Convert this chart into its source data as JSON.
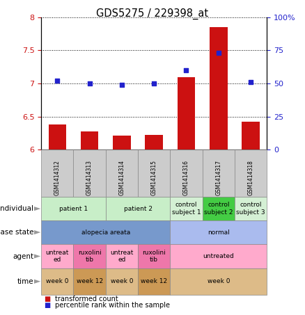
{
  "title": "GDS5275 / 229398_at",
  "samples": [
    "GSM1414312",
    "GSM1414313",
    "GSM1414314",
    "GSM1414315",
    "GSM1414316",
    "GSM1414317",
    "GSM1414318"
  ],
  "transformed_count": [
    6.38,
    6.27,
    6.21,
    6.22,
    7.1,
    7.85,
    6.42
  ],
  "percentile_rank": [
    52,
    50,
    49,
    50,
    60,
    73,
    51
  ],
  "ylim_left": [
    6.0,
    8.0
  ],
  "ylim_right": [
    0,
    100
  ],
  "yticks_left": [
    6.0,
    6.5,
    7.0,
    7.5,
    8.0
  ],
  "ytick_labels_left": [
    "6",
    "6.5",
    "7",
    "7.5",
    "8"
  ],
  "yticks_right": [
    0,
    25,
    50,
    75,
    100
  ],
  "ytick_labels_right": [
    "0",
    "25",
    "50",
    "75",
    "100%"
  ],
  "bar_color": "#cc1111",
  "dot_color": "#2222cc",
  "plot_bg_color": "#ffffff",
  "individual_spans": [
    [
      0,
      2,
      "patient 1",
      "#c8eec8"
    ],
    [
      2,
      4,
      "patient 2",
      "#c8eec8"
    ],
    [
      4,
      5,
      "control\nsubject 1",
      "#d4f0d4"
    ],
    [
      5,
      6,
      "control\nsubject 2",
      "#44cc44"
    ],
    [
      6,
      7,
      "control\nsubject 3",
      "#d4f0d4"
    ]
  ],
  "disease_state_spans": [
    [
      0,
      4,
      "alopecia areata",
      "#7799cc"
    ],
    [
      4,
      7,
      "normal",
      "#aabbee"
    ]
  ],
  "agent_spans": [
    [
      0,
      1,
      "untreat\ned",
      "#ffaacc"
    ],
    [
      1,
      2,
      "ruxolini\ntib",
      "#ee77aa"
    ],
    [
      2,
      3,
      "untreat\ned",
      "#ffaacc"
    ],
    [
      3,
      4,
      "ruxolini\ntib",
      "#ee77aa"
    ],
    [
      4,
      7,
      "untreated",
      "#ffaacc"
    ]
  ],
  "time_spans": [
    [
      0,
      1,
      "week 0",
      "#ddbb88"
    ],
    [
      1,
      2,
      "week 12",
      "#cc9955"
    ],
    [
      2,
      3,
      "week 0",
      "#ddbb88"
    ],
    [
      3,
      4,
      "week 12",
      "#cc9955"
    ],
    [
      4,
      7,
      "week 0",
      "#ddbb88"
    ]
  ],
  "row_labels": [
    "individual",
    "disease state",
    "agent",
    "time"
  ],
  "legend_bar_label": "transformed count",
  "legend_dot_label": "percentile rank within the sample",
  "sample_box_color": "#cccccc"
}
